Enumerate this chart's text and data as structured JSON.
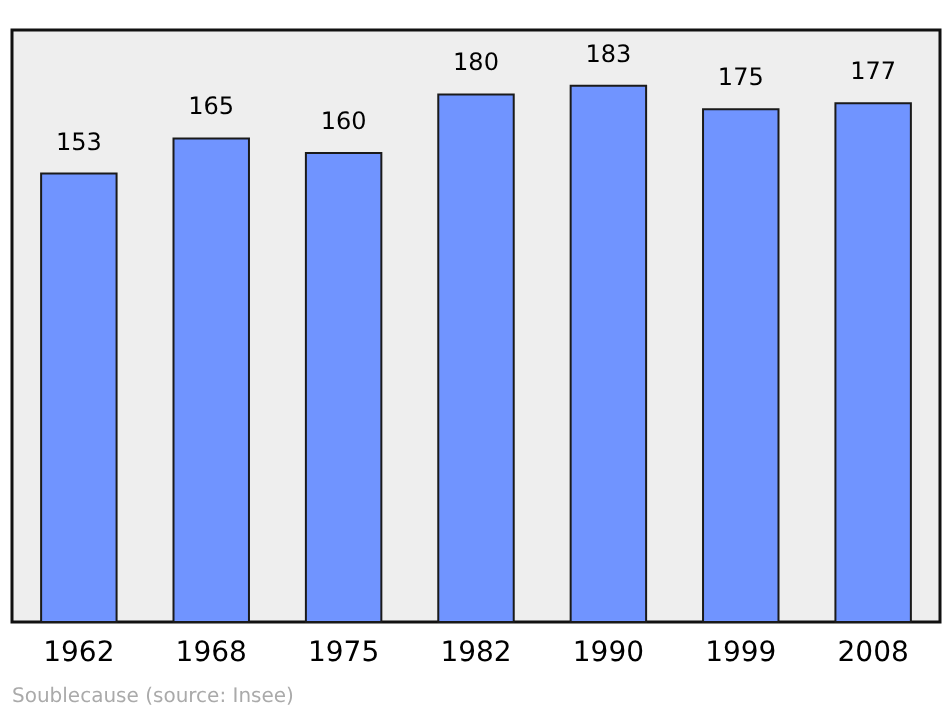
{
  "chart_data": {
    "type": "bar",
    "categories": [
      "1962",
      "1968",
      "1975",
      "1982",
      "1990",
      "1999",
      "2008"
    ],
    "values": [
      153,
      165,
      160,
      180,
      183,
      175,
      177
    ],
    "color": "#7094ff",
    "ylim": [
      0,
      202
    ],
    "data_labels": true,
    "grid": false,
    "tick_labels": "x",
    "annotations": [
      "Soublecause     (source: Insee)"
    ]
  }
}
